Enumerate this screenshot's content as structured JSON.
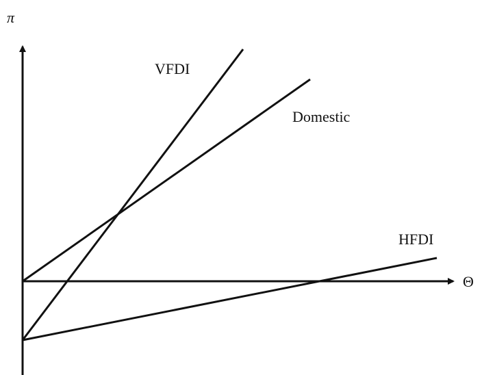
{
  "axes": {
    "y_label": "π",
    "x_label": "Θ"
  },
  "lines": [
    {
      "label": "VFDI"
    },
    {
      "label": "Domestic"
    },
    {
      "label": "HFDI"
    }
  ]
}
